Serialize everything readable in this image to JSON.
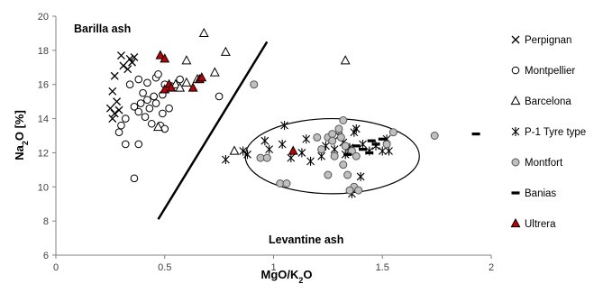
{
  "chart_data": {
    "type": "scatter",
    "xlabel": "MgO/K₂O",
    "ylabel": "Na₂O [%]",
    "xlim": [
      0,
      2
    ],
    "ylim": [
      6,
      20
    ],
    "xticks": [
      "0",
      "0.5",
      "1",
      "1.5",
      "2"
    ],
    "yticks": [
      "6",
      "8",
      "10",
      "12",
      "14",
      "16",
      "18",
      "20"
    ],
    "grid": false,
    "legend_position": "right",
    "annotations": {
      "barilla": "Barilla ash",
      "levantine": "Levantine ash"
    },
    "divider_line": {
      "x": [
        0.47,
        0.97
      ],
      "y": [
        8.1,
        18.5
      ]
    },
    "ellipse": {
      "cx": 1.27,
      "cy": 11.8,
      "rx": 0.4,
      "ry": 2.2
    },
    "series": [
      {
        "name": "Perpignan",
        "marker": "x",
        "color": "#000000",
        "points": [
          [
            0.3,
            17.7
          ],
          [
            0.34,
            17.5
          ],
          [
            0.36,
            17.6
          ],
          [
            0.31,
            17.1
          ],
          [
            0.35,
            17.3
          ],
          [
            0.27,
            16.5
          ],
          [
            0.33,
            16.9
          ],
          [
            0.26,
            15.6
          ],
          [
            0.28,
            15.0
          ],
          [
            0.25,
            14.6
          ],
          [
            0.27,
            14.3
          ],
          [
            0.26,
            14.0
          ],
          [
            0.29,
            14.5
          ]
        ]
      },
      {
        "name": "Montpellier",
        "marker": "circle-open",
        "color": "#000000",
        "points": [
          [
            0.34,
            16.0
          ],
          [
            0.38,
            16.3
          ],
          [
            0.42,
            16.1
          ],
          [
            0.46,
            16.4
          ],
          [
            0.5,
            16.0
          ],
          [
            0.49,
            15.4
          ],
          [
            0.45,
            15.3
          ],
          [
            0.4,
            15.5
          ],
          [
            0.42,
            15.1
          ],
          [
            0.36,
            14.7
          ],
          [
            0.39,
            14.9
          ],
          [
            0.43,
            14.6
          ],
          [
            0.46,
            14.9
          ],
          [
            0.49,
            14.3
          ],
          [
            0.52,
            14.6
          ],
          [
            0.53,
            15.9
          ],
          [
            0.57,
            16.3
          ],
          [
            0.38,
            14.4
          ],
          [
            0.41,
            14.1
          ],
          [
            0.44,
            13.7
          ],
          [
            0.48,
            13.6
          ],
          [
            0.5,
            13.4
          ],
          [
            0.3,
            13.6
          ],
          [
            0.32,
            14.0
          ],
          [
            0.29,
            13.2
          ],
          [
            0.32,
            12.5
          ],
          [
            0.38,
            12.5
          ],
          [
            0.36,
            10.5
          ],
          [
            0.75,
            15.3
          ],
          [
            0.47,
            16.6
          ]
        ]
      },
      {
        "name": "Barcelona",
        "marker": "triangle-open",
        "color": "#000000",
        "points": [
          [
            0.68,
            19.0
          ],
          [
            0.78,
            17.9
          ],
          [
            0.6,
            17.4
          ],
          [
            1.33,
            17.4
          ],
          [
            0.73,
            16.7
          ],
          [
            0.55,
            16.0
          ],
          [
            0.6,
            16.1
          ],
          [
            0.65,
            16.3
          ],
          [
            0.47,
            13.5
          ],
          [
            0.82,
            12.1
          ],
          [
            0.57,
            15.8
          ]
        ]
      },
      {
        "name": "P-1 Tyre type",
        "marker": "asterisk",
        "color": "#000000",
        "points": [
          [
            0.78,
            11.6
          ],
          [
            0.86,
            12.1
          ],
          [
            0.88,
            11.9
          ],
          [
            0.96,
            12.7
          ],
          [
            0.98,
            12.2
          ],
          [
            1.04,
            12.5
          ],
          [
            1.05,
            13.6
          ],
          [
            1.08,
            11.7
          ],
          [
            1.13,
            12.0
          ],
          [
            1.17,
            11.5
          ],
          [
            1.22,
            11.8
          ],
          [
            1.28,
            12.2
          ],
          [
            1.32,
            12.6
          ],
          [
            1.35,
            12.3
          ],
          [
            1.38,
            13.4
          ],
          [
            1.41,
            12.5
          ],
          [
            1.44,
            12.1
          ],
          [
            1.47,
            12.4
          ],
          [
            1.5,
            12.1
          ],
          [
            1.53,
            12.1
          ],
          [
            1.52,
            12.8
          ],
          [
            1.33,
            11.9
          ],
          [
            1.36,
            9.6
          ],
          [
            1.4,
            10.6
          ],
          [
            1.3,
            13.0
          ],
          [
            1.15,
            12.8
          ],
          [
            1.24,
            12.4
          ],
          [
            1.37,
            13.2
          ]
        ]
      },
      {
        "name": "Montfort",
        "marker": "circle-filled",
        "color": "#bfbfbf",
        "points": [
          [
            0.91,
            16.0
          ],
          [
            0.94,
            11.7
          ],
          [
            0.97,
            11.7
          ],
          [
            1.03,
            10.2
          ],
          [
            1.06,
            10.2
          ],
          [
            1.2,
            12.9
          ],
          [
            1.25,
            12.9
          ],
          [
            1.27,
            13.1
          ],
          [
            1.3,
            13.4
          ],
          [
            1.32,
            13.9
          ],
          [
            1.27,
            12.7
          ],
          [
            1.33,
            12.4
          ],
          [
            1.28,
            11.8
          ],
          [
            1.32,
            11.3
          ],
          [
            1.34,
            10.7
          ],
          [
            1.37,
            10.0
          ],
          [
            1.39,
            9.8
          ],
          [
            1.35,
            9.8
          ],
          [
            1.36,
            12.1
          ],
          [
            1.55,
            13.2
          ],
          [
            1.22,
            12.2
          ],
          [
            1.38,
            11.8
          ],
          [
            1.52,
            12.5
          ],
          [
            1.74,
            13.0
          ],
          [
            1.31,
            12.9
          ],
          [
            1.25,
            10.7
          ]
        ]
      },
      {
        "name": "Banias",
        "marker": "dash",
        "color": "#000000",
        "points": [
          [
            1.93,
            13.1
          ],
          [
            1.45,
            12.7
          ],
          [
            1.47,
            12.5
          ],
          [
            1.5,
            12.8
          ],
          [
            1.41,
            12.2
          ],
          [
            1.38,
            12.4
          ],
          [
            1.34,
            11.9
          ],
          [
            1.44,
            12.0
          ]
        ]
      },
      {
        "name": "Ultrera",
        "marker": "triangle-filled",
        "color": "#c00000",
        "points": [
          [
            0.48,
            17.7
          ],
          [
            0.5,
            17.5
          ],
          [
            0.52,
            16.0
          ],
          [
            0.5,
            15.7
          ],
          [
            0.53,
            15.8
          ],
          [
            0.63,
            15.8
          ],
          [
            0.66,
            16.3
          ],
          [
            0.67,
            16.4
          ],
          [
            1.09,
            12.1
          ]
        ]
      }
    ]
  }
}
